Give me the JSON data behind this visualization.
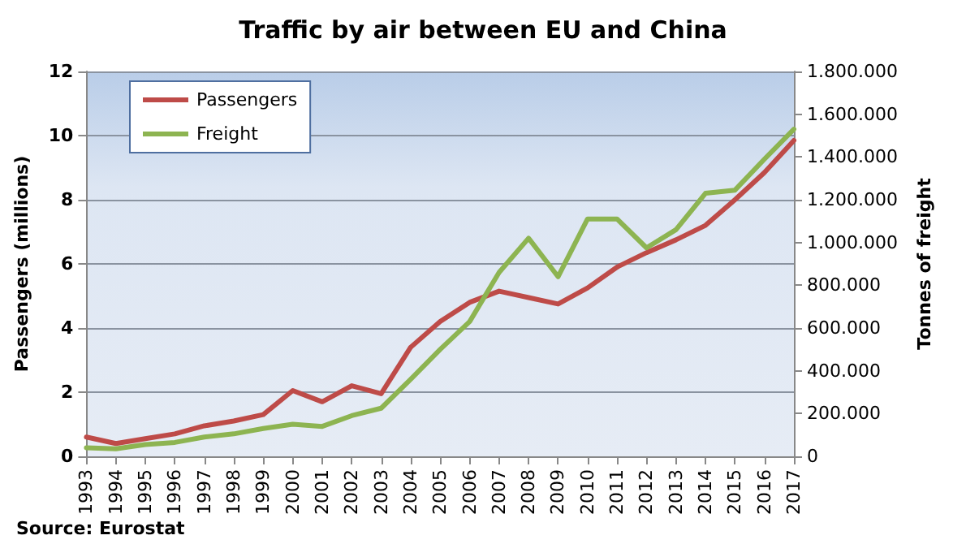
{
  "chart_data": {
    "type": "line",
    "title": "Traffic by air between EU and China",
    "categories": [
      "1993",
      "1994",
      "1995",
      "1996",
      "1997",
      "1998",
      "1999",
      "2000",
      "2001",
      "2002",
      "2003",
      "2004",
      "2005",
      "2006",
      "2007",
      "2008",
      "2009",
      "2010",
      "2011",
      "2012",
      "2013",
      "2014",
      "2015",
      "2016",
      "2017"
    ],
    "series": [
      {
        "name": "Passengers",
        "color": "#be4b48",
        "values": [
          0.6,
          0.4,
          0.55,
          0.7,
          0.95,
          1.1,
          1.3,
          2.05,
          1.7,
          2.2,
          1.95,
          3.4,
          4.2,
          4.8,
          5.15,
          4.95,
          4.75,
          5.25,
          5.9,
          6.35,
          6.75,
          7.2,
          8.0,
          8.85,
          9.85
        ]
      },
      {
        "name": "Freight",
        "color": "#8db451",
        "axis": "y2",
        "values": [
          40000,
          35000,
          55000,
          65000,
          90000,
          105000,
          130000,
          150000,
          140000,
          190000,
          225000,
          360000,
          500000,
          630000,
          860000,
          1020000,
          840000,
          1110000,
          1110000,
          975000,
          1060000,
          1230000,
          1245000,
          1390000,
          1530000
        ]
      }
    ],
    "ylabel": "Passengers (millions)",
    "y2label": "Tonnes of freight",
    "ylim": [
      0,
      12
    ],
    "yticks": [
      0,
      2,
      4,
      6,
      8,
      10,
      12
    ],
    "y2lim": [
      0,
      1800000
    ],
    "y2ticks": [
      0,
      {
        "value": 200000,
        "label": "200.000"
      },
      {
        "value": 400000,
        "label": "400.000"
      },
      {
        "value": 600000,
        "label": "600.000"
      },
      {
        "value": 800000,
        "label": "800.000"
      },
      {
        "value": 1000000,
        "label": "1.000.000"
      },
      {
        "value": 1200000,
        "label": "1.200.000"
      },
      {
        "value": 1400000,
        "label": "1.400.000"
      },
      {
        "value": 1600000,
        "label": "1.600.000"
      },
      {
        "value": 1800000,
        "label": "1.800.000"
      }
    ],
    "grid": "y",
    "legend": "top left",
    "marker": "none",
    "line_style": "solid",
    "annotations": [
      "Source: Eurostat"
    ]
  }
}
